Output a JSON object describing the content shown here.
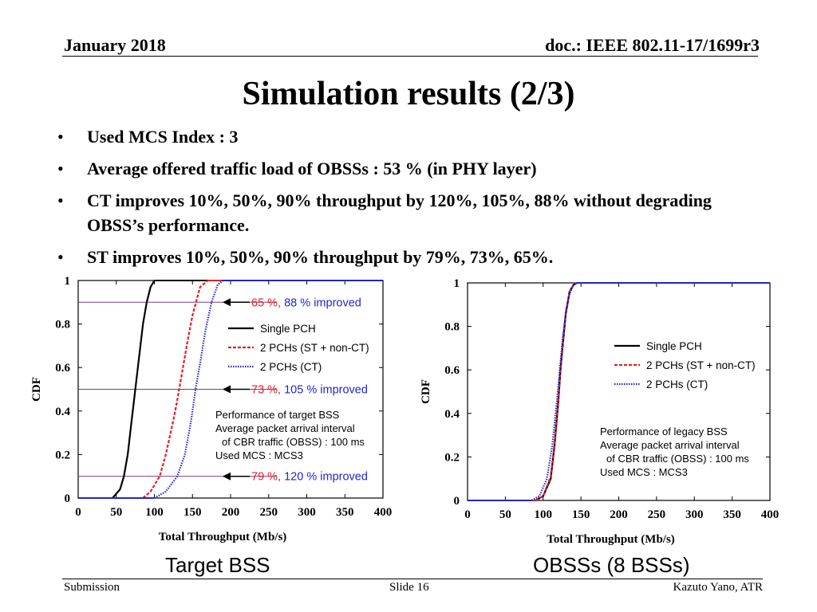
{
  "header": {
    "date": "January 2018",
    "doc": "doc.: IEEE 802.11-17/1699r3"
  },
  "title": "Simulation results (2/3)",
  "bullets": [
    "Used MCS Index : 3",
    "Average offered traffic load of OBSSs : 53 % (in PHY layer)",
    "CT improves 10%, 50%, 90% throughput by 120%, 105%, 88% without degrading OBSS’s performance.",
    "ST improves 10%, 50%, 90% throughput by 79%, 73%, 65%."
  ],
  "bullet_symbol": "•",
  "captions": {
    "left": "Target BSS",
    "right": "OBSSs (8 BSSs)"
  },
  "footer": {
    "left": "Submission",
    "center": "Slide 16",
    "right": "Kazuto Yano, ATR"
  },
  "colors": {
    "single": "#000000",
    "st": "#e0202a",
    "ct": "#2026c8",
    "pct_line": "#7a3a7a",
    "ann_red": "#e0202a",
    "ann_blue": "#2026c8"
  },
  "chart_data": [
    {
      "type": "line",
      "title": "Target BSS",
      "xlabel": "Total Throughput (Mb/s)",
      "ylabel": "CDF",
      "xlim": [
        0,
        400
      ],
      "ylim": [
        0,
        1
      ],
      "x_ticks": [
        "0",
        "50",
        "100",
        "150",
        "200",
        "250",
        "300",
        "350",
        "400"
      ],
      "y_ticks": [
        "0",
        "0.2",
        "0.4",
        "0.6",
        "0.8",
        "1"
      ],
      "series": [
        {
          "name": "Single PCH",
          "style": "solid",
          "color": "#000000",
          "x": [
            45,
            55,
            60,
            65,
            70,
            75,
            80,
            85,
            90,
            95,
            100
          ],
          "y": [
            0,
            0.04,
            0.1,
            0.2,
            0.35,
            0.5,
            0.65,
            0.8,
            0.9,
            0.97,
            1
          ]
        },
        {
          "name": "2 PCHs (ST + non-CT)",
          "style": "dashed",
          "color": "#e0202a",
          "x": [
            85,
            95,
            107,
            115,
            120,
            125,
            130,
            135,
            140,
            145,
            150,
            160,
            170
          ],
          "y": [
            0,
            0.03,
            0.1,
            0.2,
            0.28,
            0.36,
            0.45,
            0.55,
            0.65,
            0.75,
            0.84,
            0.97,
            1
          ]
        },
        {
          "name": "2 PCHs (CT)",
          "style": "dotted",
          "color": "#2026c8",
          "x": [
            100,
            115,
            130,
            140,
            148,
            154,
            160,
            167,
            175,
            183,
            190
          ],
          "y": [
            0,
            0.03,
            0.1,
            0.2,
            0.35,
            0.5,
            0.62,
            0.77,
            0.9,
            0.98,
            1
          ]
        }
      ],
      "percentile_lines": [
        0.1,
        0.5,
        0.9
      ],
      "annotations": [
        {
          "at": 0.9,
          "red": "65 %, ",
          "blue": "88 %",
          "suffix": " improved"
        },
        {
          "at": 0.5,
          "red": "73 %, ",
          "blue": "105 %",
          "suffix": " improved"
        },
        {
          "at": 0.1,
          "red": "79 %, ",
          "blue": "120 %",
          "suffix": " improved"
        }
      ],
      "notes": [
        "Performance of target BSS",
        "Average packet arrival interval",
        "of CBR traffic (OBSS) : 100 ms",
        "Used MCS : MCS3"
      ]
    },
    {
      "type": "line",
      "title": "OBSSs (8 BSSs)",
      "xlabel": "Total Throughput (Mb/s)",
      "ylabel": "CDF",
      "xlim": [
        0,
        400
      ],
      "ylim": [
        0,
        1
      ],
      "x_ticks": [
        "0",
        "50",
        "100",
        "150",
        "200",
        "250",
        "300",
        "350",
        "400"
      ],
      "y_ticks": [
        "0",
        "0.2",
        "0.4",
        "0.6",
        "0.8",
        "1"
      ],
      "series": [
        {
          "name": "Single PCH",
          "style": "solid",
          "color": "#000000",
          "x": [
            90,
            100,
            110,
            115,
            120,
            123,
            127,
            130,
            135,
            140,
            145
          ],
          "y": [
            0,
            0.02,
            0.1,
            0.25,
            0.45,
            0.6,
            0.75,
            0.86,
            0.96,
            0.99,
            1
          ]
        },
        {
          "name": "2 PCHs (ST + non-CT)",
          "style": "dashed",
          "color": "#e0202a",
          "x": [
            90,
            100,
            110,
            115,
            120,
            123,
            127,
            130,
            135,
            140,
            145
          ],
          "y": [
            0,
            0.02,
            0.11,
            0.26,
            0.46,
            0.61,
            0.76,
            0.87,
            0.96,
            0.99,
            1
          ]
        },
        {
          "name": "2 PCHs (CT)",
          "style": "dotted",
          "color": "#2026c8",
          "x": [
            85,
            95,
            105,
            112,
            118,
            122,
            126,
            130,
            135,
            140,
            145
          ],
          "y": [
            0,
            0.02,
            0.1,
            0.25,
            0.45,
            0.6,
            0.75,
            0.86,
            0.95,
            0.99,
            1
          ]
        }
      ],
      "notes": [
        "Performance of legacy BSS",
        "Average packet arrival interval",
        "of CBR traffic (OBSS) : 100 ms",
        "Used MCS : MCS3"
      ]
    }
  ]
}
